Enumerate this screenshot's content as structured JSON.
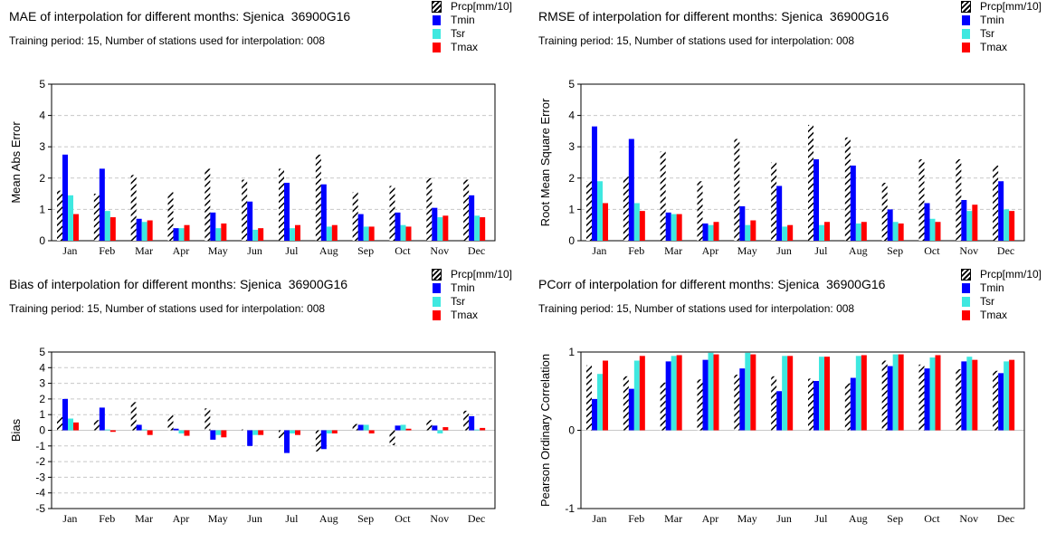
{
  "legend": {
    "series": [
      {
        "name": "Prcp[mm/10]",
        "color": "#000000",
        "pattern": "hatch"
      },
      {
        "name": "Tmin",
        "color": "#0000ff",
        "pattern": "solid"
      },
      {
        "name": "Tsr",
        "color": "#3ee8e0",
        "pattern": "solid"
      },
      {
        "name": "Tmax",
        "color": "#ff0000",
        "pattern": "solid"
      }
    ]
  },
  "chart_data": [
    {
      "type": "bar",
      "title": "MAE of interpolation for different months: Sjenica  36900G16",
      "subtitle": "Training period: 15, Number of stations used for interpolation: 008",
      "ylabel": "Mean Abs Error",
      "xlabel": "",
      "ylim": [
        0,
        5
      ],
      "yticks": [
        0,
        1,
        2,
        3,
        4,
        5
      ],
      "grid": "y-dashed",
      "categories": [
        "Jan",
        "Feb",
        "Mar",
        "Apr",
        "May",
        "Jun",
        "Jul",
        "Aug",
        "Sep",
        "Oct",
        "Nov",
        "Dec"
      ],
      "series": [
        {
          "name": "Prcp[mm/10]",
          "values": [
            1.6,
            1.5,
            2.1,
            1.55,
            2.3,
            1.95,
            2.3,
            2.75,
            1.55,
            1.75,
            2.0,
            1.95
          ]
        },
        {
          "name": "Tmin",
          "values": [
            2.75,
            2.3,
            0.7,
            0.4,
            0.9,
            1.25,
            1.85,
            1.8,
            0.85,
            0.9,
            1.05,
            1.45
          ]
        },
        {
          "name": "Tsr",
          "values": [
            1.45,
            0.95,
            0.6,
            0.4,
            0.4,
            0.35,
            0.4,
            0.45,
            0.45,
            0.5,
            0.75,
            0.8
          ]
        },
        {
          "name": "Tmax",
          "values": [
            0.85,
            0.75,
            0.65,
            0.5,
            0.55,
            0.4,
            0.5,
            0.5,
            0.45,
            0.45,
            0.8,
            0.75
          ]
        }
      ]
    },
    {
      "type": "bar",
      "title": "RMSE of interpolation for different months: Sjenica  36900G16",
      "subtitle": "Training period: 15, Number of stations used for interpolation: 008",
      "ylabel": "Root Mean Square Error",
      "xlabel": "",
      "ylim": [
        0,
        5
      ],
      "yticks": [
        0,
        1,
        2,
        3,
        4,
        5
      ],
      "grid": "y-dashed",
      "categories": [
        "Jan",
        "Feb",
        "Mar",
        "Apr",
        "May",
        "Jun",
        "Jul",
        "Aug",
        "Sep",
        "Oct",
        "Nov",
        "Dec"
      ],
      "series": [
        {
          "name": "Prcp[mm/10]",
          "values": [
            1.9,
            2.05,
            2.85,
            1.9,
            3.25,
            2.5,
            3.7,
            3.3,
            1.85,
            2.6,
            2.6,
            2.4
          ]
        },
        {
          "name": "Tmin",
          "values": [
            3.65,
            3.25,
            0.9,
            0.55,
            1.1,
            1.75,
            2.6,
            2.4,
            1.0,
            1.2,
            1.3,
            1.9
          ]
        },
        {
          "name": "Tsr",
          "values": [
            1.9,
            1.2,
            0.85,
            0.5,
            0.5,
            0.45,
            0.5,
            0.55,
            0.6,
            0.7,
            0.95,
            1.0
          ]
        },
        {
          "name": "Tmax",
          "values": [
            1.2,
            0.95,
            0.85,
            0.6,
            0.65,
            0.5,
            0.6,
            0.6,
            0.55,
            0.6,
            1.15,
            0.95
          ]
        }
      ]
    },
    {
      "type": "bar",
      "title": "Bias of interpolation for different months: Sjenica  36900G16",
      "subtitle": "Training period: 15, Number of stations used for interpolation: 008",
      "ylabel": "Bias",
      "xlabel": "",
      "ylim": [
        -5,
        5
      ],
      "yticks": [
        -5,
        -4,
        -3,
        -2,
        -1,
        0,
        1,
        2,
        3,
        4,
        5
      ],
      "grid": "y-dashed",
      "categories": [
        "Jan",
        "Feb",
        "Mar",
        "Apr",
        "May",
        "Jun",
        "Jul",
        "Aug",
        "Sep",
        "Oct",
        "Nov",
        "Dec"
      ],
      "series": [
        {
          "name": "Prcp[mm/10]",
          "values": [
            0.85,
            0.65,
            1.8,
            0.95,
            1.4,
            0.05,
            -0.5,
            -1.35,
            0.4,
            -0.95,
            0.65,
            1.25
          ]
        },
        {
          "name": "Tmin",
          "values": [
            2.0,
            1.45,
            0.35,
            0.1,
            -0.6,
            -1.0,
            -1.45,
            -1.2,
            0.35,
            0.3,
            0.3,
            0.9
          ]
        },
        {
          "name": "Tsr",
          "values": [
            0.75,
            0.05,
            0.05,
            -0.2,
            -0.3,
            -0.3,
            -0.2,
            -0.2,
            0.35,
            0.35,
            -0.2,
            0.05
          ]
        },
        {
          "name": "Tmax",
          "values": [
            0.5,
            -0.1,
            -0.3,
            -0.35,
            -0.45,
            -0.3,
            -0.3,
            -0.2,
            -0.2,
            0.1,
            0.2,
            0.15
          ]
        }
      ]
    },
    {
      "type": "bar",
      "title": "PCorr of interpolation for different months: Sjenica  36900G16",
      "subtitle": "Training period: 15, Number of stations used for interpolation: 008",
      "ylabel": "Pearson Ordinary Correlation",
      "xlabel": "",
      "ylim": [
        -1,
        1
      ],
      "yticks": [
        -1,
        0,
        1
      ],
      "grid": "y-dashed",
      "categories": [
        "Jan",
        "Feb",
        "Mar",
        "Apr",
        "May",
        "Jun",
        "Jul",
        "Aug",
        "Sep",
        "Oct",
        "Nov",
        "Dec"
      ],
      "series": [
        {
          "name": "Prcp[mm/10]",
          "values": [
            0.83,
            0.69,
            0.61,
            0.65,
            0.71,
            0.69,
            0.66,
            0.6,
            0.89,
            0.84,
            0.78,
            0.76
          ]
        },
        {
          "name": "Tmin",
          "values": [
            0.4,
            0.53,
            0.88,
            0.9,
            0.79,
            0.5,
            0.63,
            0.67,
            0.82,
            0.79,
            0.88,
            0.73
          ]
        },
        {
          "name": "Tsr",
          "values": [
            0.72,
            0.89,
            0.95,
            0.99,
            0.99,
            0.95,
            0.94,
            0.95,
            0.97,
            0.93,
            0.94,
            0.88
          ]
        },
        {
          "name": "Tmax",
          "values": [
            0.89,
            0.95,
            0.96,
            0.97,
            0.97,
            0.95,
            0.94,
            0.96,
            0.97,
            0.96,
            0.9,
            0.9
          ]
        }
      ]
    }
  ]
}
